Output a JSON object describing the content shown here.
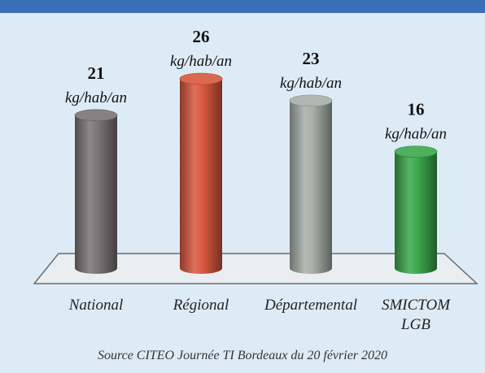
{
  "chart_data": {
    "type": "bar",
    "style": "3d-cylinder",
    "categories": [
      "National",
      "Régional",
      "Départemental",
      "SMICTOM\nLGB"
    ],
    "values": [
      21,
      26,
      23,
      16
    ],
    "unit": "kg/hab/an",
    "colors": [
      "#7b7375",
      "#d9573e",
      "#a6afa7",
      "#3aa84b"
    ],
    "ylim": [
      0,
      28
    ],
    "grid": false,
    "legend": "none"
  },
  "source": "Source CITEO Journée TI Bordeaux du 20 février 2020"
}
